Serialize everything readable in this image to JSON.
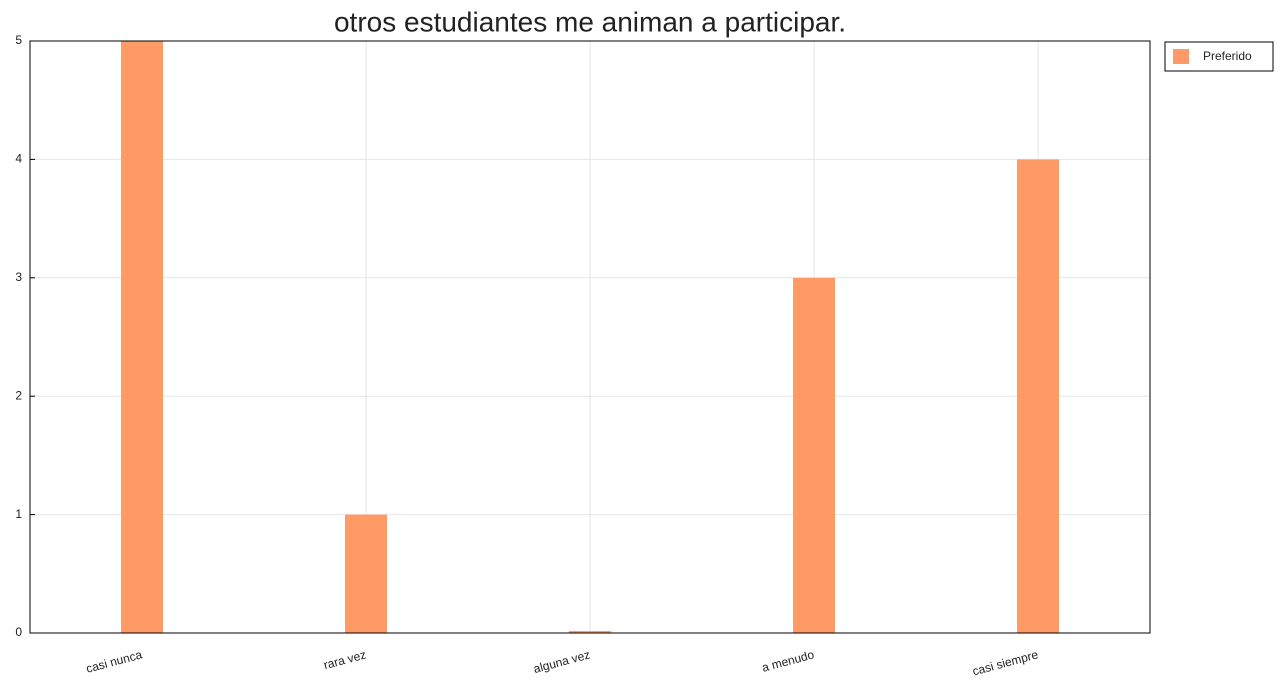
{
  "chart_data": {
    "type": "bar",
    "title": "otros estudiantes me animan a participar.",
    "categories": [
      "casi nunca",
      "rara vez",
      "alguna vez",
      "a menudo",
      "casi siempre"
    ],
    "series": [
      {
        "name": "Preferido",
        "color": "#ff9966",
        "values": [
          5,
          1,
          0,
          3,
          4
        ]
      }
    ],
    "ylim": [
      0,
      5
    ],
    "yticks": [
      0,
      1,
      2,
      3,
      4,
      5
    ],
    "grid": true,
    "legend": "outside-right"
  }
}
